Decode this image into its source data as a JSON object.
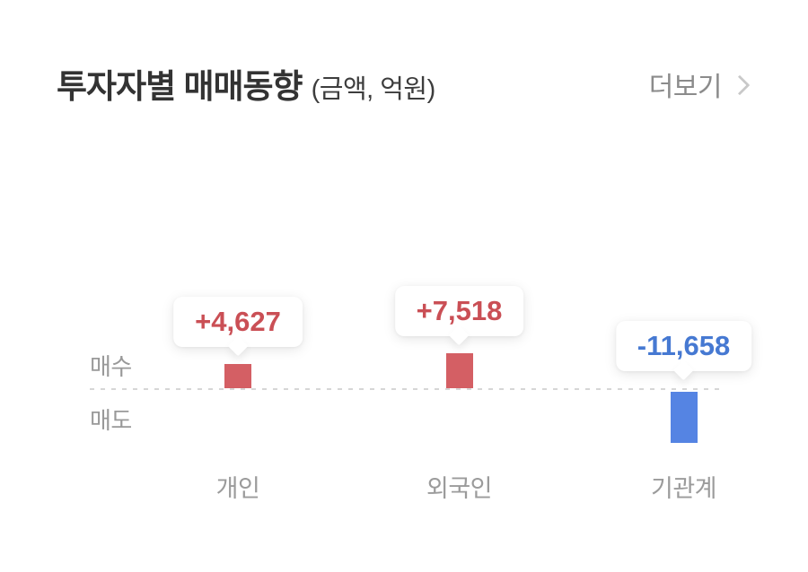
{
  "header": {
    "title": "투자자별 매매동향",
    "subtitle": "(금액, 억원)",
    "more_label": "더보기"
  },
  "chart_data": {
    "type": "bar",
    "title": "투자자별 매매동향 (금액, 억원)",
    "categories": [
      "개인",
      "외국인",
      "기관계"
    ],
    "values": [
      4627,
      7518,
      -11658
    ],
    "value_labels": [
      "+4,627",
      "+7,518",
      "-11,658"
    ],
    "series": [
      {
        "name": "매매동향(금액, 억원)",
        "values": [
          4627,
          7518,
          -11658
        ]
      }
    ],
    "axis_labels": {
      "above": "매수",
      "below": "매도"
    },
    "unit": "억원",
    "colors": {
      "positive_bar": "#d45f64",
      "positive_text": "#ca4f55",
      "negative_bar": "#5584e3",
      "negative_text": "#4679d2"
    },
    "layout_hints": {
      "legend": "none",
      "grid": "zero-baseline-dashed",
      "value_labels_in_tooltips": true
    }
  }
}
